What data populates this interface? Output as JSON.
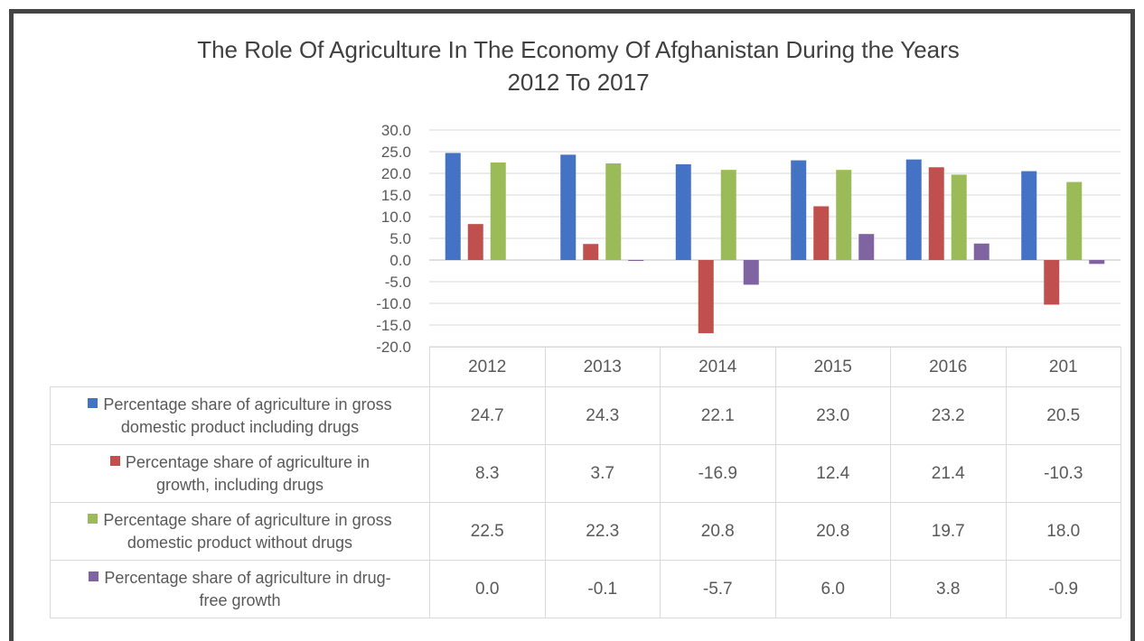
{
  "title_line1": "The Role Of Agriculture In The Economy Of Afghanistan During the Years",
  "title_line2": "2012 To 2017",
  "chart_data": {
    "type": "bar",
    "title": "The Role Of Agriculture In The Economy Of Afghanistan During the Years 2012 To 2017",
    "categories": [
      "2012",
      "2013",
      "2014",
      "2015",
      "2016",
      "201"
    ],
    "ylim": [
      -20,
      30
    ],
    "yticks": [
      "30.0",
      "25.0",
      "20.0",
      "15.0",
      "10.0",
      "5.0",
      "0.0",
      "-5.0",
      "-10.0",
      "-15.0",
      "-20.0"
    ],
    "grid": true,
    "legend": "data table",
    "series": [
      {
        "name_line1": "Percentage share of agriculture in gross",
        "name_line2": "domestic product including drugs",
        "color": "#4472c4",
        "values": [
          24.7,
          24.3,
          22.1,
          23.0,
          23.2,
          20.5
        ],
        "labels": [
          "24.7",
          "24.3",
          "22.1",
          "23.0",
          "23.2",
          "20.5"
        ]
      },
      {
        "name_line1": "Percentage share of agriculture in",
        "name_line2": "growth, including drugs",
        "color": "#c0504d",
        "values": [
          8.3,
          3.7,
          -16.9,
          12.4,
          21.4,
          -10.3
        ],
        "labels": [
          "8.3",
          "3.7",
          "-16.9",
          "12.4",
          "21.4",
          "-10.3"
        ]
      },
      {
        "name_line1": "Percentage share of agriculture in gross",
        "name_line2": "domestic product without drugs",
        "color": "#9bbb59",
        "values": [
          22.5,
          22.3,
          20.8,
          20.8,
          19.7,
          18.0
        ],
        "labels": [
          "22.5",
          "22.3",
          "20.8",
          "20.8",
          "19.7",
          "18.0"
        ]
      },
      {
        "name_line1": "Percentage share of agriculture in drug-",
        "name_line2": "free growth",
        "color": "#8064a2",
        "values": [
          0.0,
          -0.1,
          -5.7,
          6.0,
          3.8,
          -0.9
        ],
        "labels": [
          "0.0",
          "-0.1",
          "-5.7",
          "6.0",
          "3.8",
          "-0.9"
        ]
      }
    ]
  }
}
